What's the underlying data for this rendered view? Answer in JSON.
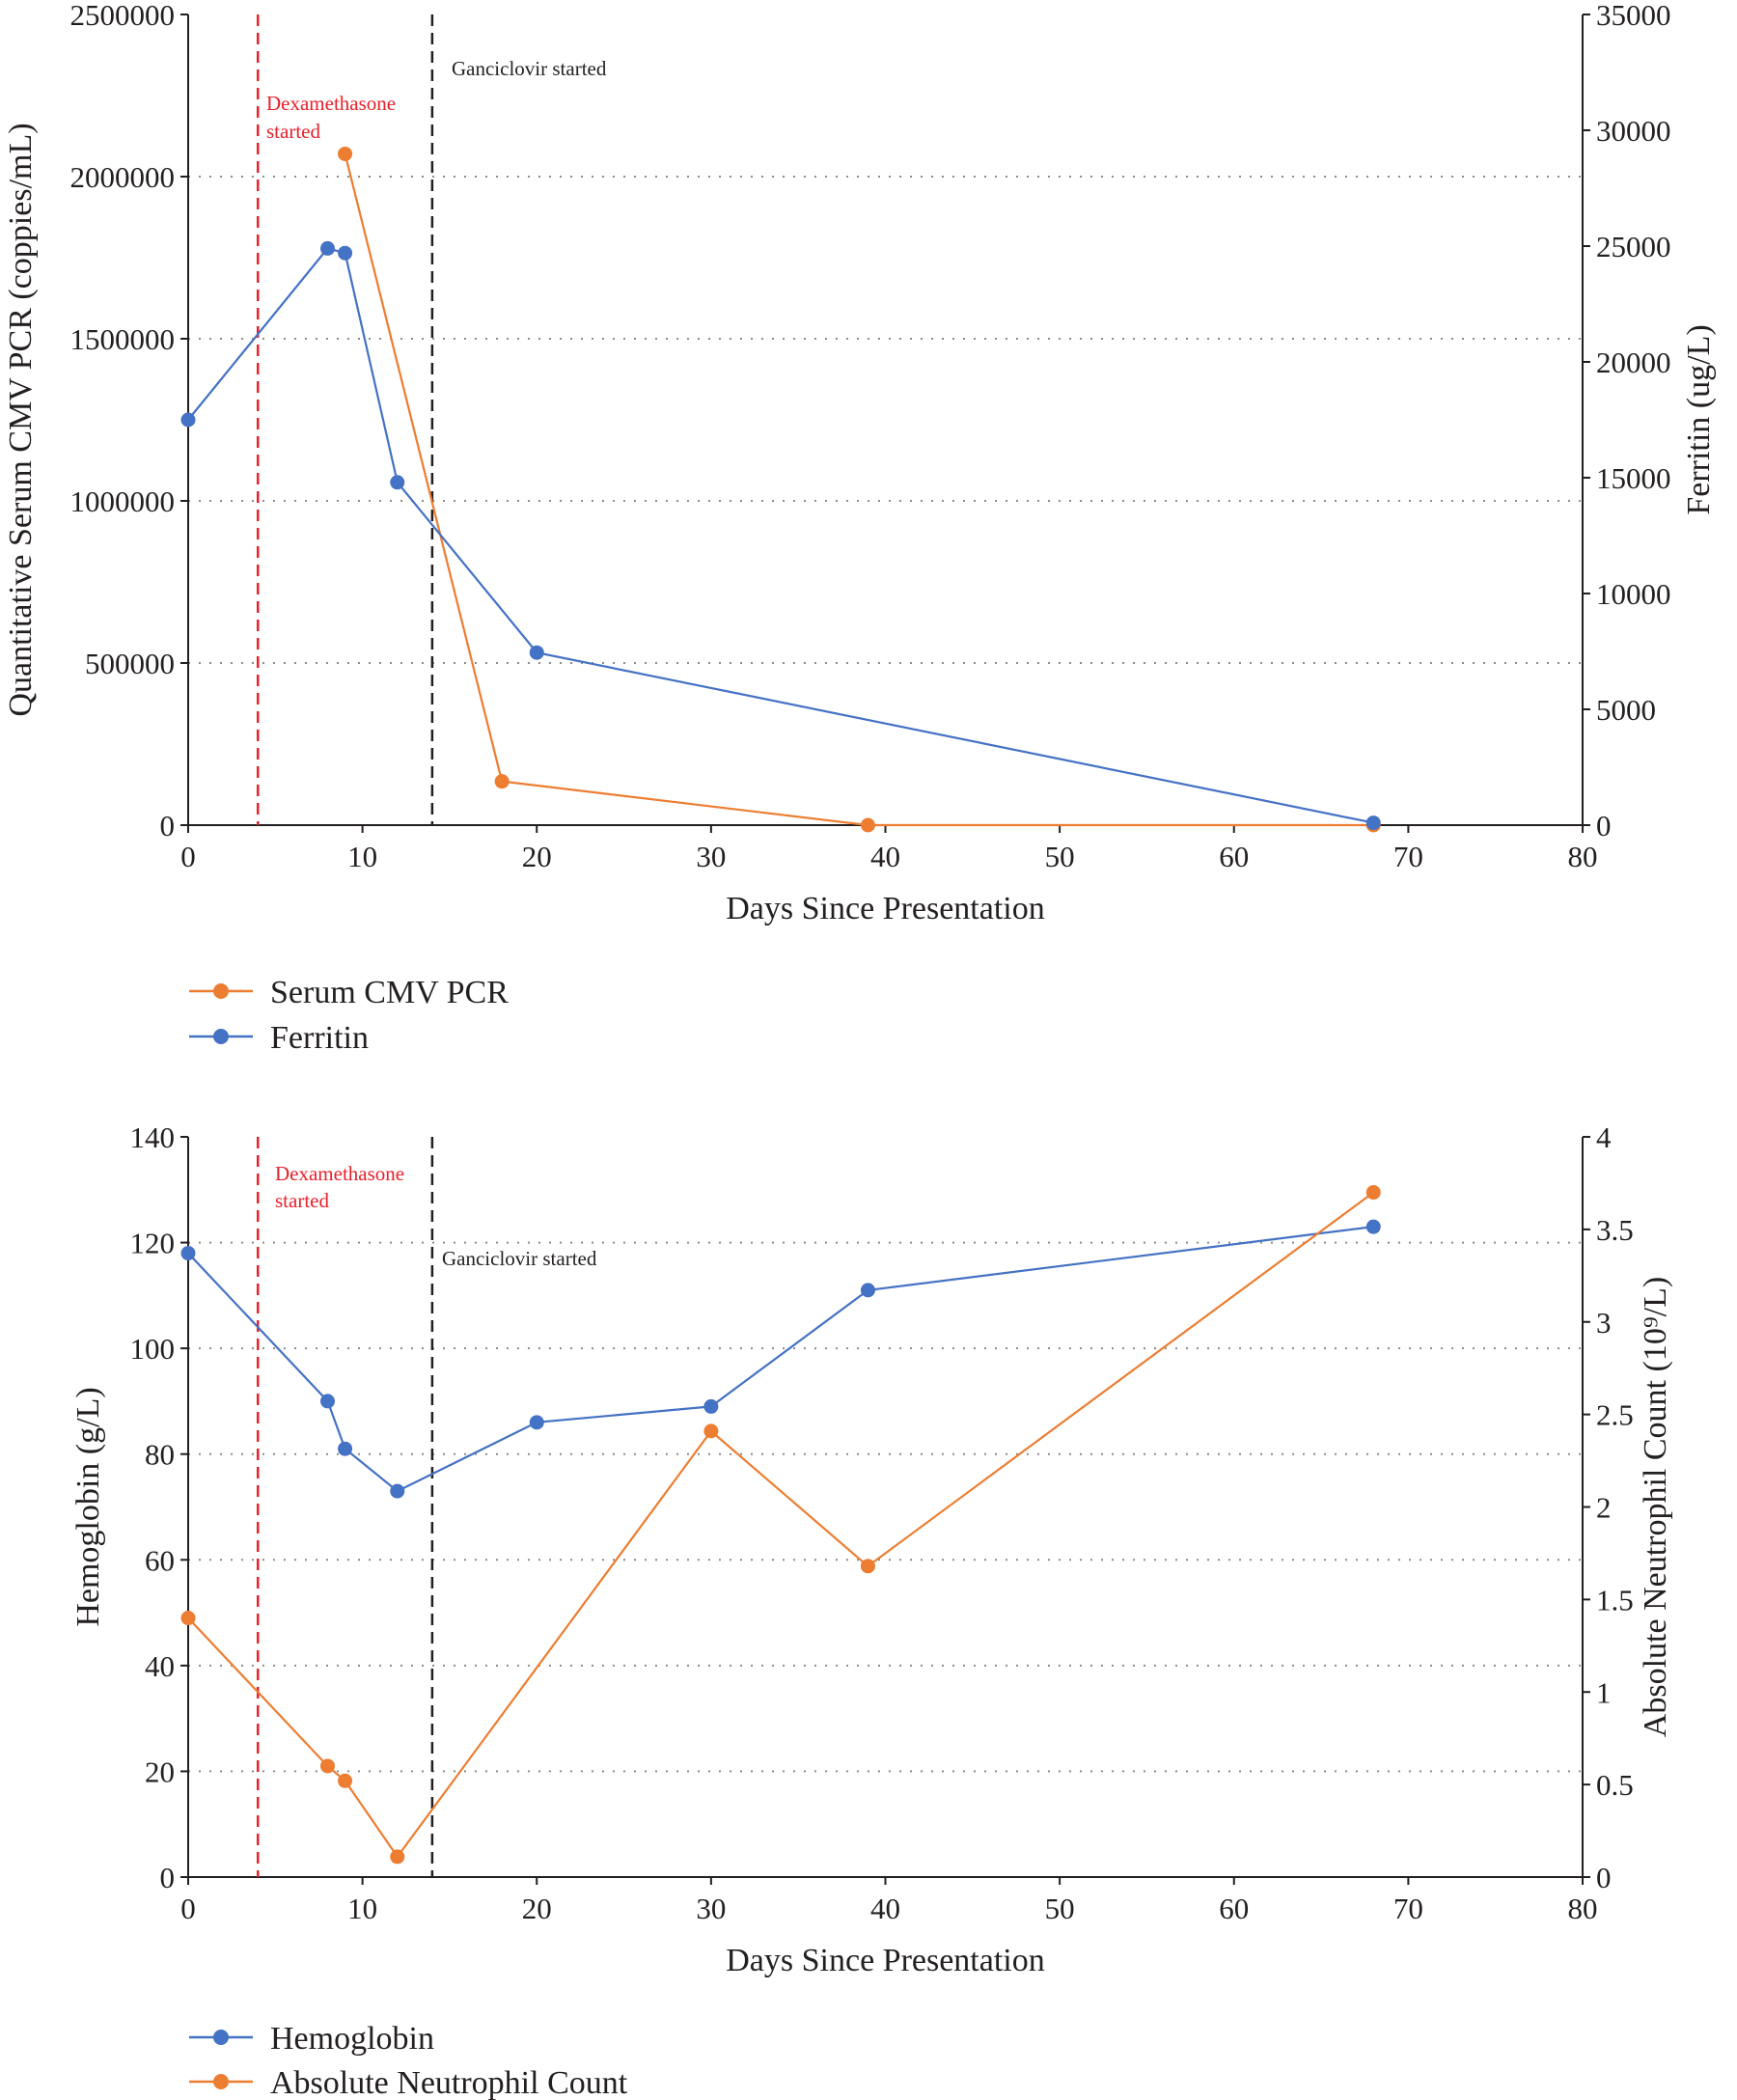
{
  "colors": {
    "orange": "#ed7d31",
    "blue": "#4472c4",
    "red_marker": "#e8202a",
    "black_marker": "#231f20",
    "axis": "#231f20",
    "grid": "#8c8c8c"
  },
  "chart_data": [
    {
      "type": "line",
      "x_label": "Days Since Presentation",
      "y_label_left": "Quantitative Serum CMV PCR (coppies/mL)",
      "y_label_right": "Ferritin (ug/L)",
      "xlim": [
        0,
        80
      ],
      "x_ticks": [
        0,
        10,
        20,
        30,
        40,
        50,
        60,
        70,
        80
      ],
      "ylim_left": [
        0,
        2500000
      ],
      "y_ticks_left": [
        0,
        500000,
        1000000,
        1500000,
        2000000,
        2500000
      ],
      "ylim_right": [
        0,
        35000
      ],
      "y_ticks_right": [
        0,
        5000,
        10000,
        15000,
        20000,
        25000,
        30000,
        35000
      ],
      "grid": "horizontal dotted",
      "legend_position": "bottom-left",
      "annotations": [
        {
          "x": 4,
          "label": "Dexamethasone started",
          "lines": [
            "Dexamethasone",
            "started"
          ],
          "color": "red"
        },
        {
          "x": 14,
          "label": "Ganciclovir started",
          "lines": [
            "Ganciclovir started"
          ],
          "color": "black"
        }
      ],
      "series": [
        {
          "name": "Serum CMV PCR",
          "axis": "left",
          "color": "orange",
          "points": [
            [
              9,
              2070000
            ],
            [
              18,
              135000
            ],
            [
              39,
              0
            ],
            [
              68,
              0
            ]
          ]
        },
        {
          "name": "Ferritin",
          "axis": "right",
          "color": "blue",
          "points": [
            [
              0,
              17500
            ],
            [
              8,
              24900
            ],
            [
              9,
              24700
            ],
            [
              12,
              14800
            ],
            [
              20,
              7450
            ],
            [
              68,
              100
            ]
          ]
        }
      ]
    },
    {
      "type": "line",
      "x_label": "Days Since Presentation",
      "y_label_left": "Hemoglobin (g/L)",
      "y_label_right": "Absolute Neutrophil Count (10⁹/L)",
      "xlim": [
        0,
        80
      ],
      "x_ticks": [
        0,
        10,
        20,
        30,
        40,
        50,
        60,
        70,
        80
      ],
      "ylim_left": [
        0,
        140
      ],
      "y_ticks_left": [
        0,
        20,
        40,
        60,
        80,
        100,
        120,
        140
      ],
      "ylim_right": [
        0,
        4
      ],
      "y_ticks_right": [
        "0",
        "0.5",
        "1",
        "1.5",
        "2",
        "2.5",
        "3",
        "3.5",
        "4"
      ],
      "grid": "horizontal dotted",
      "legend_position": "bottom-left",
      "annotations": [
        {
          "x": 4,
          "label": "Dexamethasone started",
          "lines": [
            "Dexamethasone",
            "started"
          ],
          "color": "red"
        },
        {
          "x": 14,
          "label": "Ganciclovir started",
          "lines": [
            "Ganciclovir started"
          ],
          "color": "black"
        }
      ],
      "series": [
        {
          "name": "Hemoglobin",
          "axis": "left",
          "color": "blue",
          "points": [
            [
              0,
              118
            ],
            [
              8,
              90
            ],
            [
              9,
              81
            ],
            [
              12,
              73
            ],
            [
              20,
              86
            ],
            [
              30,
              89
            ],
            [
              39,
              111
            ],
            [
              68,
              123
            ]
          ]
        },
        {
          "name": "Absolute Neutrophil Count",
          "axis": "right",
          "color": "orange",
          "points": [
            [
              0,
              1.4
            ],
            [
              8,
              0.6
            ],
            [
              9,
              0.52
            ],
            [
              12,
              0.11
            ],
            [
              30,
              2.41
            ],
            [
              39,
              1.68
            ],
            [
              68,
              3.7
            ]
          ]
        }
      ]
    }
  ]
}
